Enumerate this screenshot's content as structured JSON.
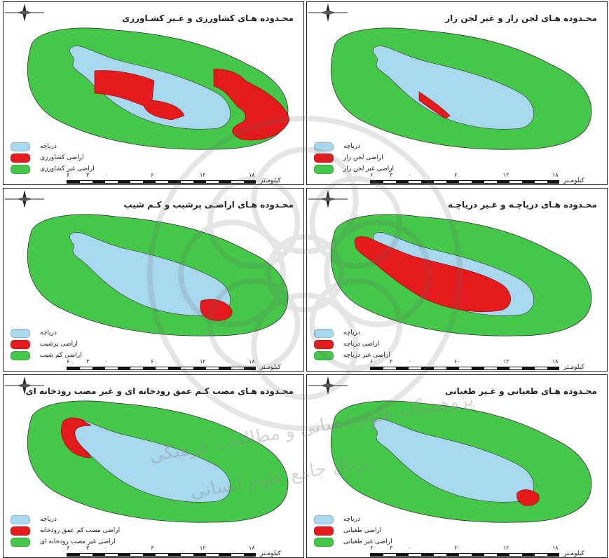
{
  "colors": {
    "lake": "#a8d8ee",
    "red": "#e41a1c",
    "green": "#45c84a",
    "outline": "#333333"
  },
  "panels": [
    {
      "title": "محـدوده هـای کشاورزی و غـیر کشـاورزی",
      "legend": [
        "دریاچه",
        "اراضی کشاورزی",
        "اراضی غیر کشاورزی"
      ],
      "ticks": [
        "۶",
        "۳",
        "۰",
        "۶",
        "۱۲",
        "۱۸"
      ],
      "unit": "کیلومـتر",
      "red_shape": "agri"
    },
    {
      "title": "محـدوده هـای لجن زار و غیر لجن زار",
      "legend": [
        "دریاچه",
        "اراضی لجن زار",
        "اراضی غیر لجن زار"
      ],
      "ticks": [
        "۶",
        "۳",
        "۰",
        "۶",
        "۱۲",
        "۱۸"
      ],
      "unit": "کیلومـتر",
      "red_shape": "mud"
    },
    {
      "title": "محـدوده هـای اراضـی پرشیب و کـم شیب",
      "legend": [
        "دریاچه",
        "اراضی پرشیب",
        "اراضی کم شیب"
      ],
      "ticks": [
        "۶",
        "۳",
        "۰",
        "۶",
        "۱۲",
        "۱۸"
      ],
      "unit": "کیلومـتر",
      "red_shape": "slope"
    },
    {
      "title": "محـدوده هـای دریاچـه و غـیر دریاچـه",
      "legend": [
        "دریاچه",
        "اراضی دریاچه",
        "اراضی غیر دریاچه"
      ],
      "ticks": [
        "۶",
        "۳",
        "۰",
        "۶",
        "۱۲",
        "۱۸"
      ],
      "unit": "کیلومـتر",
      "red_shape": "lake"
    },
    {
      "title": "محـدوده هـای مصب کـم عمق رودخانه ای و غیر مصب رودخانه ای",
      "legend": [
        "دریاچه",
        "اراضی مصب کم عمق رودخانه",
        "اراضی غیر مصب رودخانه ای"
      ],
      "ticks": [
        "۶",
        "۳",
        "۰",
        "۶",
        "۱۲",
        "۱۸"
      ],
      "unit": "کیلومـتر",
      "red_shape": "river"
    },
    {
      "title": "محـدوده هـای طغیانی و غـیر طغیانی",
      "legend": [
        "دریاچه",
        "اراضی طغیانی",
        "اراضی غیر طغیانی"
      ],
      "ticks": [
        "۶",
        "۳",
        "۰",
        "۶",
        "۱۲",
        "۱۸"
      ],
      "unit": "کیلومـتر",
      "red_shape": "flood"
    }
  ],
  "watermark": {
    "line1": "پژوهشگاه علوم انسانی و مطالعات فرهنگی",
    "line2": "پرتال جامع علوم انسانی"
  }
}
